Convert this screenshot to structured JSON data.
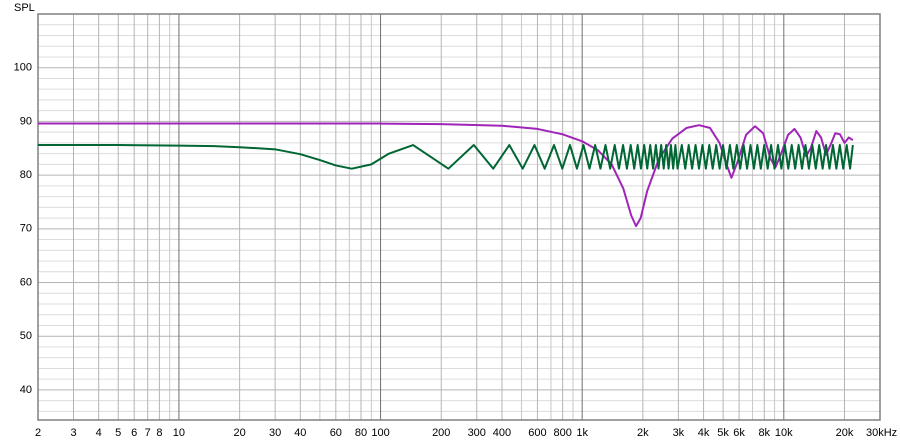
{
  "chart_data": {
    "type": "line",
    "y_label": "SPL",
    "xscale": "log",
    "grid": true,
    "xlim": [
      2,
      30000
    ],
    "ylim": [
      34.4,
      110
    ],
    "yticks": [
      40,
      50,
      60,
      70,
      80,
      90,
      100
    ],
    "yminor_ticks": [
      36,
      38,
      42,
      44,
      46,
      48,
      52,
      54,
      56,
      58,
      62,
      64,
      66,
      68,
      72,
      74,
      76,
      78,
      82,
      84,
      86,
      88,
      92,
      94,
      96,
      98,
      102,
      104,
      106,
      108
    ],
    "xticks": [
      2,
      3,
      4,
      5,
      6,
      7,
      8,
      10,
      20,
      30,
      40,
      60,
      80,
      100,
      200,
      300,
      400,
      600,
      800,
      {
        "value": 1000,
        "label": "1k"
      },
      {
        "value": 2000,
        "label": "2k"
      },
      {
        "value": 3000,
        "label": "3k"
      },
      {
        "value": 4000,
        "label": "4k"
      },
      {
        "value": 5000,
        "label": "5k"
      },
      {
        "value": 6000,
        "label": "6k"
      },
      {
        "value": 8000,
        "label": "8k"
      },
      {
        "value": 10000,
        "label": "10k"
      },
      {
        "value": 20000,
        "label": "20k"
      },
      {
        "value": 30000,
        "label": "30kHz"
      }
    ],
    "xminor_ticks": [
      9,
      50,
      70,
      90,
      500,
      700,
      900,
      7000,
      9000
    ],
    "series": [
      {
        "color": "#a024b8",
        "x": [
          2,
          100,
          200,
          400,
          600,
          800,
          1000,
          1200,
          1400,
          1600,
          1750,
          1850,
          1950,
          2100,
          2400,
          2800,
          3300,
          3800,
          4300,
          4800,
          5200,
          5500,
          5900,
          6500,
          7200,
          7900,
          8600,
          9100,
          9700,
          10500,
          11300,
          12100,
          12900,
          13600,
          14500,
          15300,
          16200,
          17000,
          18000,
          19000,
          20000,
          21000,
          22000
        ],
        "values": [
          89.6,
          89.6,
          89.5,
          89.2,
          88.6,
          87.6,
          86.3,
          84.6,
          82,
          77.5,
          72.5,
          70.5,
          72,
          77,
          83,
          86.8,
          88.8,
          89.3,
          88.8,
          86,
          82,
          79.5,
          82.5,
          87.5,
          89.1,
          87.8,
          83,
          81.5,
          84,
          87.5,
          88.6,
          87,
          83.5,
          85,
          88.2,
          87,
          83.8,
          85.5,
          87.8,
          87.6,
          86,
          87,
          86.5
        ]
      },
      {
        "color": "#006633",
        "x": [
          2,
          5,
          10,
          15,
          20,
          30,
          40,
          50,
          60,
          72,
          90,
          110,
          145,
          217,
          290,
          362,
          435,
          507,
          580,
          652,
          725,
          797,
          870,
          942,
          1015,
          1087,
          1160,
          1232,
          1305,
          1377,
          1450,
          1522,
          1595,
          1667,
          1740,
          1812,
          1885,
          1957,
          2030,
          2102,
          2175,
          2247,
          2320,
          2392,
          2465,
          2537,
          2610,
          2682,
          2755,
          2827,
          2900,
          2972,
          3120,
          3245,
          3375,
          3510,
          3650,
          3796,
          3948,
          4106,
          4270,
          4441,
          4619,
          4803,
          4996,
          5195,
          5403,
          5619,
          5844,
          6078,
          6321,
          6574,
          6837,
          7110,
          7395,
          7690,
          7998,
          8318,
          8651,
          8997,
          9357,
          9731,
          10120,
          10525,
          10946,
          11384,
          11839,
          12313,
          12805,
          13317,
          13850,
          14404,
          14980,
          15580,
          16203,
          16851,
          17525,
          18226,
          18955,
          19714,
          20502,
          21322,
          22000
        ],
        "values": [
          85.6,
          85.6,
          85.5,
          85.4,
          85.2,
          84.8,
          83.9,
          82.8,
          81.8,
          81.2,
          82,
          84,
          85.6,
          81.2,
          85.6,
          81.2,
          85.6,
          81.2,
          85.6,
          81.2,
          85.6,
          81.2,
          85.6,
          81.2,
          85.6,
          81.2,
          85.6,
          81.2,
          85.6,
          81.2,
          85.6,
          81.2,
          85.6,
          81.2,
          85.6,
          81.2,
          85.6,
          81.2,
          85.6,
          81.2,
          85.6,
          81.2,
          85.6,
          81.2,
          85.6,
          81.2,
          85.6,
          81.2,
          85.6,
          81.2,
          85.6,
          81.2,
          85.6,
          81.2,
          85.6,
          81.2,
          85.6,
          81.2,
          85.6,
          81.2,
          85.6,
          81.2,
          85.6,
          81.2,
          85.6,
          81.2,
          85.6,
          81.2,
          85.6,
          81.2,
          85.6,
          81.2,
          85.6,
          81.2,
          85.6,
          81.2,
          85.6,
          81.2,
          85.6,
          81.2,
          85.6,
          81.2,
          85.6,
          81.2,
          85.6,
          81.2,
          85.6,
          81.2,
          85.6,
          81.2,
          85.6,
          81.2,
          85.6,
          81.2,
          85.6,
          81.2,
          85.6,
          81.2,
          85.6,
          81.2,
          85.6,
          81.2,
          85.6
        ]
      }
    ]
  }
}
